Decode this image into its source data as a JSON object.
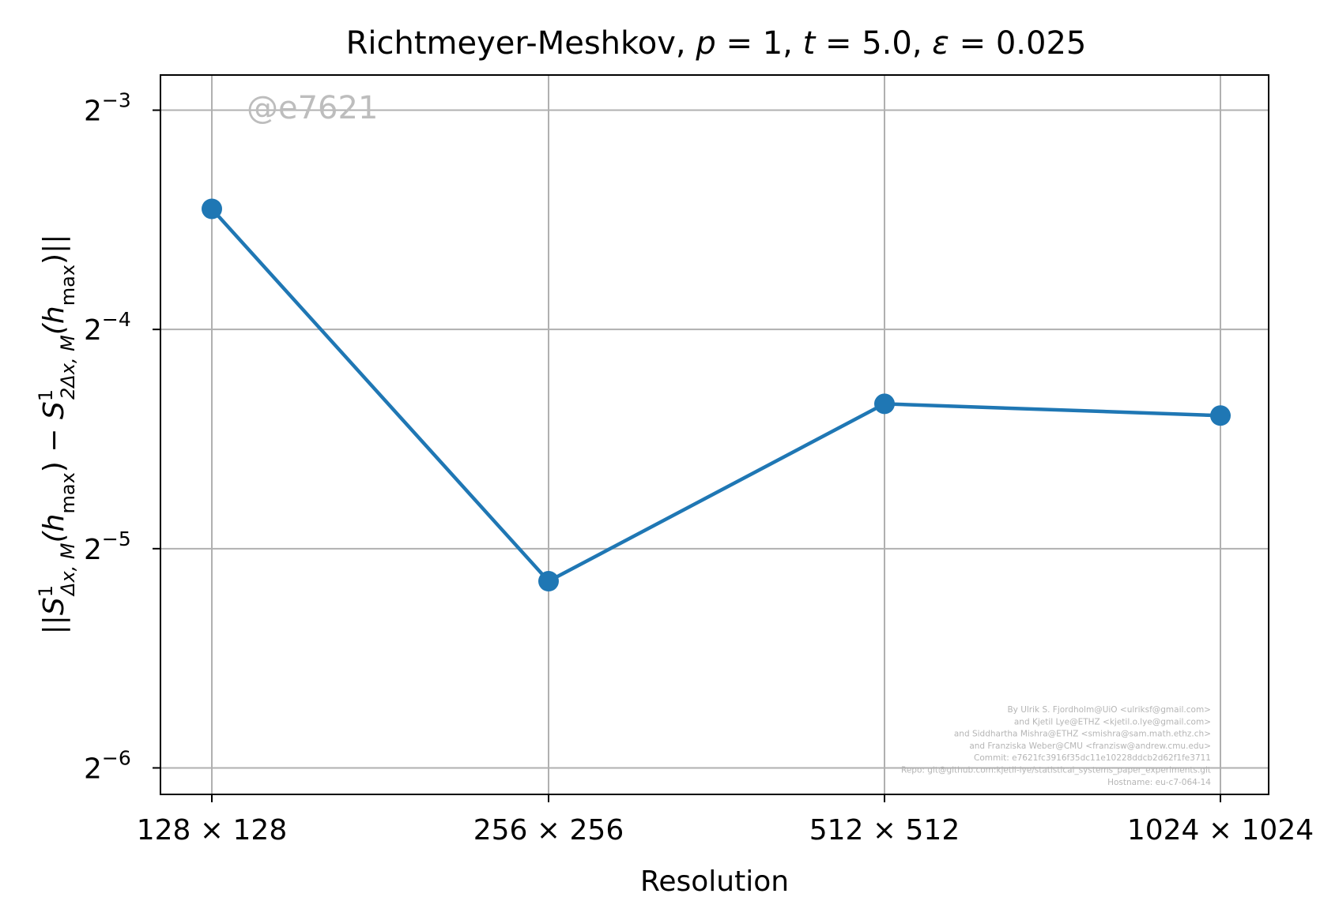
{
  "chart_data": {
    "type": "line",
    "title": {
      "prefix": "Richtmeyer-Meshkov, ",
      "p_label": "p",
      "p_value": "1",
      "t_label": "t",
      "t_value": "5.0",
      "eps_label": "ε",
      "eps_value": "0.025"
    },
    "xlabel": "Resolution",
    "ylabel": {
      "open": "||",
      "sym": "S",
      "sup": "1",
      "sub1": "Δx, M",
      "arg": "(h",
      "argsub": "max",
      "close": ")",
      "minus": " − ",
      "sub2": "2Δx, M",
      "end": ")||"
    },
    "categories": [
      "128 × 128",
      "256 × 256",
      "512 × 512",
      "1024 × 1024"
    ],
    "series": [
      {
        "values": [
          0.0915,
          0.0282,
          0.0494,
          0.0476
        ],
        "color": "#1f77b4"
      }
    ],
    "y_scale": "log2",
    "y_ticks": [
      {
        "base": "2",
        "exp": "−3",
        "value": 0.125
      },
      {
        "base": "2",
        "exp": "−4",
        "value": 0.0625
      },
      {
        "base": "2",
        "exp": "−5",
        "value": 0.03125
      },
      {
        "base": "2",
        "exp": "−6",
        "value": 0.015625
      }
    ],
    "ylim": [
      0.01437,
      0.1397
    ],
    "grid": true,
    "watermark": "@e7621",
    "credits": [
      "By Ulrik S. Fjordholm@UiO <ulriksf@gmail.com>",
      "and Kjetil Lye@ETHZ <kjetil.o.lye@gmail.com>",
      "and Siddhartha Mishra@ETHZ <smishra@sam.math.ethz.ch>",
      "and Franziska Weber@CMU <franzisw@andrew.cmu.edu>",
      "Commit: e7621fc3916f35dc11e10228ddcb2d62f1fe3711",
      "Repo: git@github.com:kjetil-lye/statistical_systems_paper_experiments.git",
      "Hostname: eu-c7-064-14"
    ],
    "colors": {
      "line": "#1f77b4",
      "grid": "#b0b0b0",
      "axes": "#000000"
    }
  }
}
